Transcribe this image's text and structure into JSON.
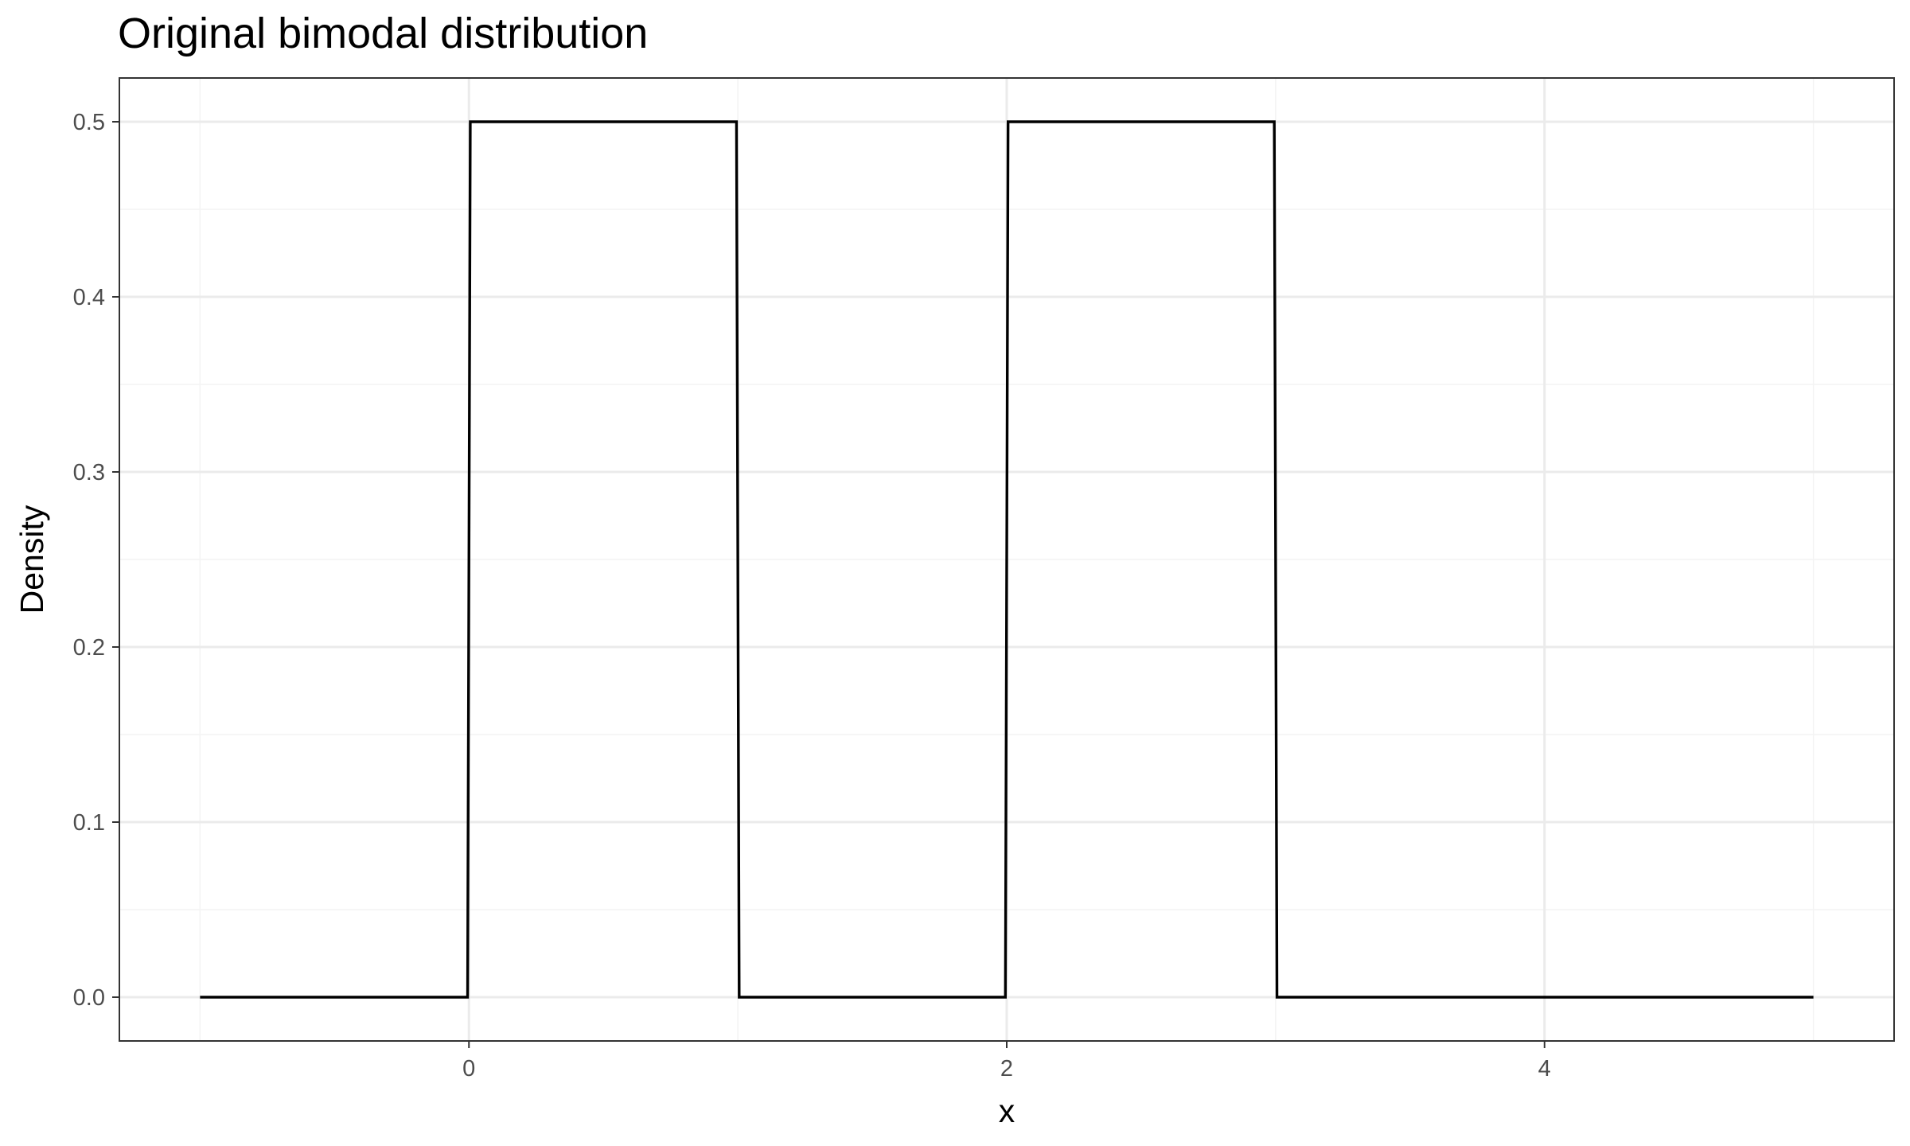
{
  "chart_data": {
    "type": "line",
    "title": "Original bimodal distribution",
    "xlabel": "x",
    "ylabel": "Density",
    "xlim": [
      -1.3,
      5.3
    ],
    "ylim": [
      -0.025,
      0.525
    ],
    "x_ticks": [
      0,
      2,
      4
    ],
    "x_tick_labels": [
      "0",
      "2",
      "4"
    ],
    "y_ticks": [
      0.0,
      0.1,
      0.2,
      0.3,
      0.4,
      0.5
    ],
    "y_tick_labels": [
      "0.0",
      "0.1",
      "0.2",
      "0.3",
      "0.4",
      "0.5"
    ],
    "grid": true,
    "legend": "none",
    "series": [
      {
        "color": "#000000",
        "x": [
          -1,
          -0.005,
          0.005,
          0.995,
          1.005,
          1.995,
          2.005,
          2.995,
          3.005,
          5
        ],
        "y": [
          0,
          0,
          0.5,
          0.5,
          0,
          0,
          0.5,
          0.5,
          0,
          0
        ]
      }
    ]
  }
}
